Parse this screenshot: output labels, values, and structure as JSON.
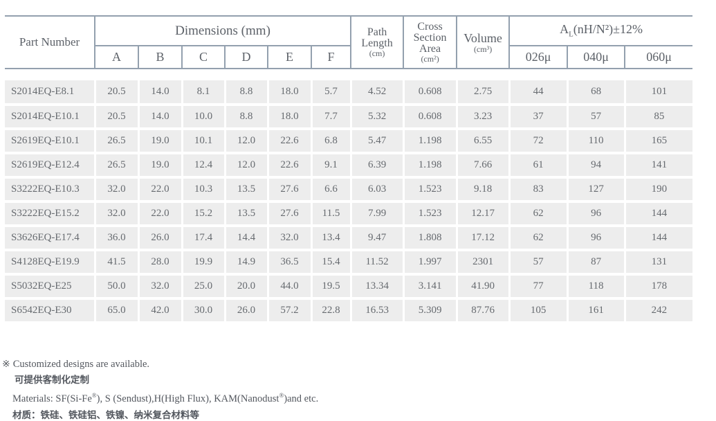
{
  "table": {
    "header": {
      "part_number": "Part Number",
      "dimensions": "Dimensions (mm)",
      "dim_cols": [
        "A",
        "B",
        "C",
        "D",
        "E",
        "F"
      ],
      "path_length": {
        "l1": "Path",
        "l2": "Length",
        "unit": "(cm)"
      },
      "cross_section": {
        "l1": "Cross",
        "l2": "Section",
        "l3": "Area",
        "unit": "(cm²)"
      },
      "volume": {
        "label": "Volume",
        "unit": "(cm³)"
      },
      "al": {
        "a": "A",
        "sub": "L",
        "rest": "(nH/N²)±12%"
      },
      "al_cols": [
        "026μ",
        "040μ",
        "060μ"
      ]
    },
    "columns": [
      "Part Number",
      "A",
      "B",
      "C",
      "D",
      "E",
      "F",
      "Path Length (cm)",
      "Cross Section Area (cm²)",
      "Volume (cm³)",
      "026μ",
      "040μ",
      "060μ"
    ],
    "rows": [
      [
        "S2014EQ-E8.1",
        "20.5",
        "14.0",
        "8.1",
        "8.8",
        "18.0",
        "5.7",
        "4.52",
        "0.608",
        "2.75",
        "44",
        "68",
        "101"
      ],
      [
        "S2014EQ-E10.1",
        "20.5",
        "14.0",
        "10.0",
        "8.8",
        "18.0",
        "7.7",
        "5.32",
        "0.608",
        "3.23",
        "37",
        "57",
        "85"
      ],
      [
        "S2619EQ-E10.1",
        "26.5",
        "19.0",
        "10.1",
        "12.0",
        "22.6",
        "6.8",
        "5.47",
        "1.198",
        "6.55",
        "72",
        "110",
        "165"
      ],
      [
        "S2619EQ-E12.4",
        "26.5",
        "19.0",
        "12.4",
        "12.0",
        "22.6",
        "9.1",
        "6.39",
        "1.198",
        "7.66",
        "61",
        "94",
        "141"
      ],
      [
        "S3222EQ-E10.3",
        "32.0",
        "22.0",
        "10.3",
        "13.5",
        "27.6",
        "6.6",
        "6.03",
        "1.523",
        "9.18",
        "83",
        "127",
        "190"
      ],
      [
        "S3222EQ-E15.2",
        "32.0",
        "22.0",
        "15.2",
        "13.5",
        "27.6",
        "11.5",
        "7.99",
        "1.523",
        "12.17",
        "62",
        "96",
        "144"
      ],
      [
        "S3626EQ-E17.4",
        "36.0",
        "26.0",
        "17.4",
        "14.4",
        "32.0",
        "13.4",
        "9.47",
        "1.808",
        "17.12",
        "62",
        "96",
        "144"
      ],
      [
        "S4128EQ-E19.9",
        "41.5",
        "28.0",
        "19.9",
        "14.9",
        "36.5",
        "15.4",
        "11.52",
        "1.997",
        "2301",
        "57",
        "87",
        "131"
      ],
      [
        "S5032EQ-E25",
        "50.0",
        "32.0",
        "25.0",
        "20.0",
        "44.0",
        "19.5",
        "13.34",
        "3.141",
        "41.90",
        "77",
        "118",
        "178"
      ],
      [
        "S6542EQ-E30",
        "65.0",
        "42.0",
        "30.0",
        "26.0",
        "57.2",
        "22.8",
        "16.53",
        "5.309",
        "87.76",
        "105",
        "161",
        "242"
      ]
    ]
  },
  "footnotes": {
    "symbol": "※",
    "en_note": "Customized designs are available.",
    "zh_note": "可提供客制化定制",
    "materials": {
      "p1": "Materials: SF(Si-Fe",
      "reg1": "®",
      "p2": "), S (Sendust),H(High Flux), KAM(Nanodust",
      "reg2": "®",
      "p3": ")and etc."
    },
    "materials_zh": "材质：铁硅、铁硅铝、铁镍、纳米复合材料等"
  },
  "colors": {
    "border_line": "#93a0ae",
    "cell_background": "#ededed",
    "text": "#666a6f"
  }
}
